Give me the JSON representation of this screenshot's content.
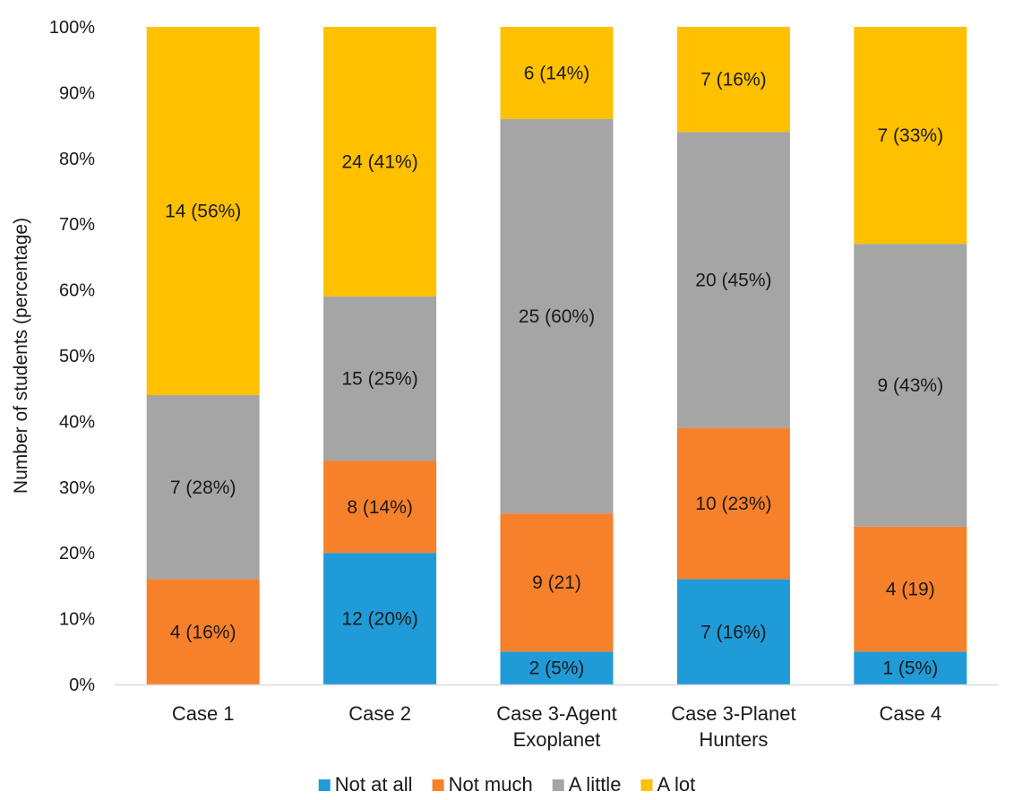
{
  "chart_data": {
    "type": "bar",
    "stacked": true,
    "title": "",
    "xlabel": "",
    "ylabel": "Number of students (percentage)",
    "ylim": [
      0,
      100
    ],
    "yticks": [
      "0%",
      "10%",
      "20%",
      "30%",
      "40%",
      "50%",
      "60%",
      "70%",
      "80%",
      "90%",
      "100%"
    ],
    "grid": false,
    "legend_position": "bottom",
    "categories": [
      [
        "Case 1"
      ],
      [
        "Case 2"
      ],
      [
        "Case 3-Agent",
        "Exoplanet"
      ],
      [
        "Case 3-Planet",
        "Hunters"
      ],
      [
        "Case 4"
      ]
    ],
    "series": [
      {
        "name": "Not at all",
        "color": "#1f9bd7",
        "values": [
          0,
          20,
          5,
          16,
          5
        ],
        "labels": [
          "",
          "12 (20%)",
          "2 (5%)",
          "7 (16%)",
          "1 (5%)"
        ]
      },
      {
        "name": "Not much",
        "color": "#f7802b",
        "values": [
          16,
          14,
          21,
          23,
          19
        ],
        "labels": [
          "4 (16%)",
          "8 (14%)",
          "9 (21)",
          "10 (23%)",
          "4 (19)"
        ]
      },
      {
        "name": "A little",
        "color": "#a5a5a5",
        "values": [
          28,
          25,
          60,
          45,
          43
        ],
        "labels": [
          "7 (28%)",
          "15 (25%)",
          "25 (60%)",
          "20 (45%)",
          "9 (43%)"
        ]
      },
      {
        "name": "A lot",
        "color": "#ffc000",
        "values": [
          56,
          41,
          14,
          16,
          33
        ],
        "labels": [
          "14 (56%)",
          "24 (41%)",
          "6 (14%)",
          "7 (16%)",
          "7 (33%)"
        ]
      }
    ]
  }
}
